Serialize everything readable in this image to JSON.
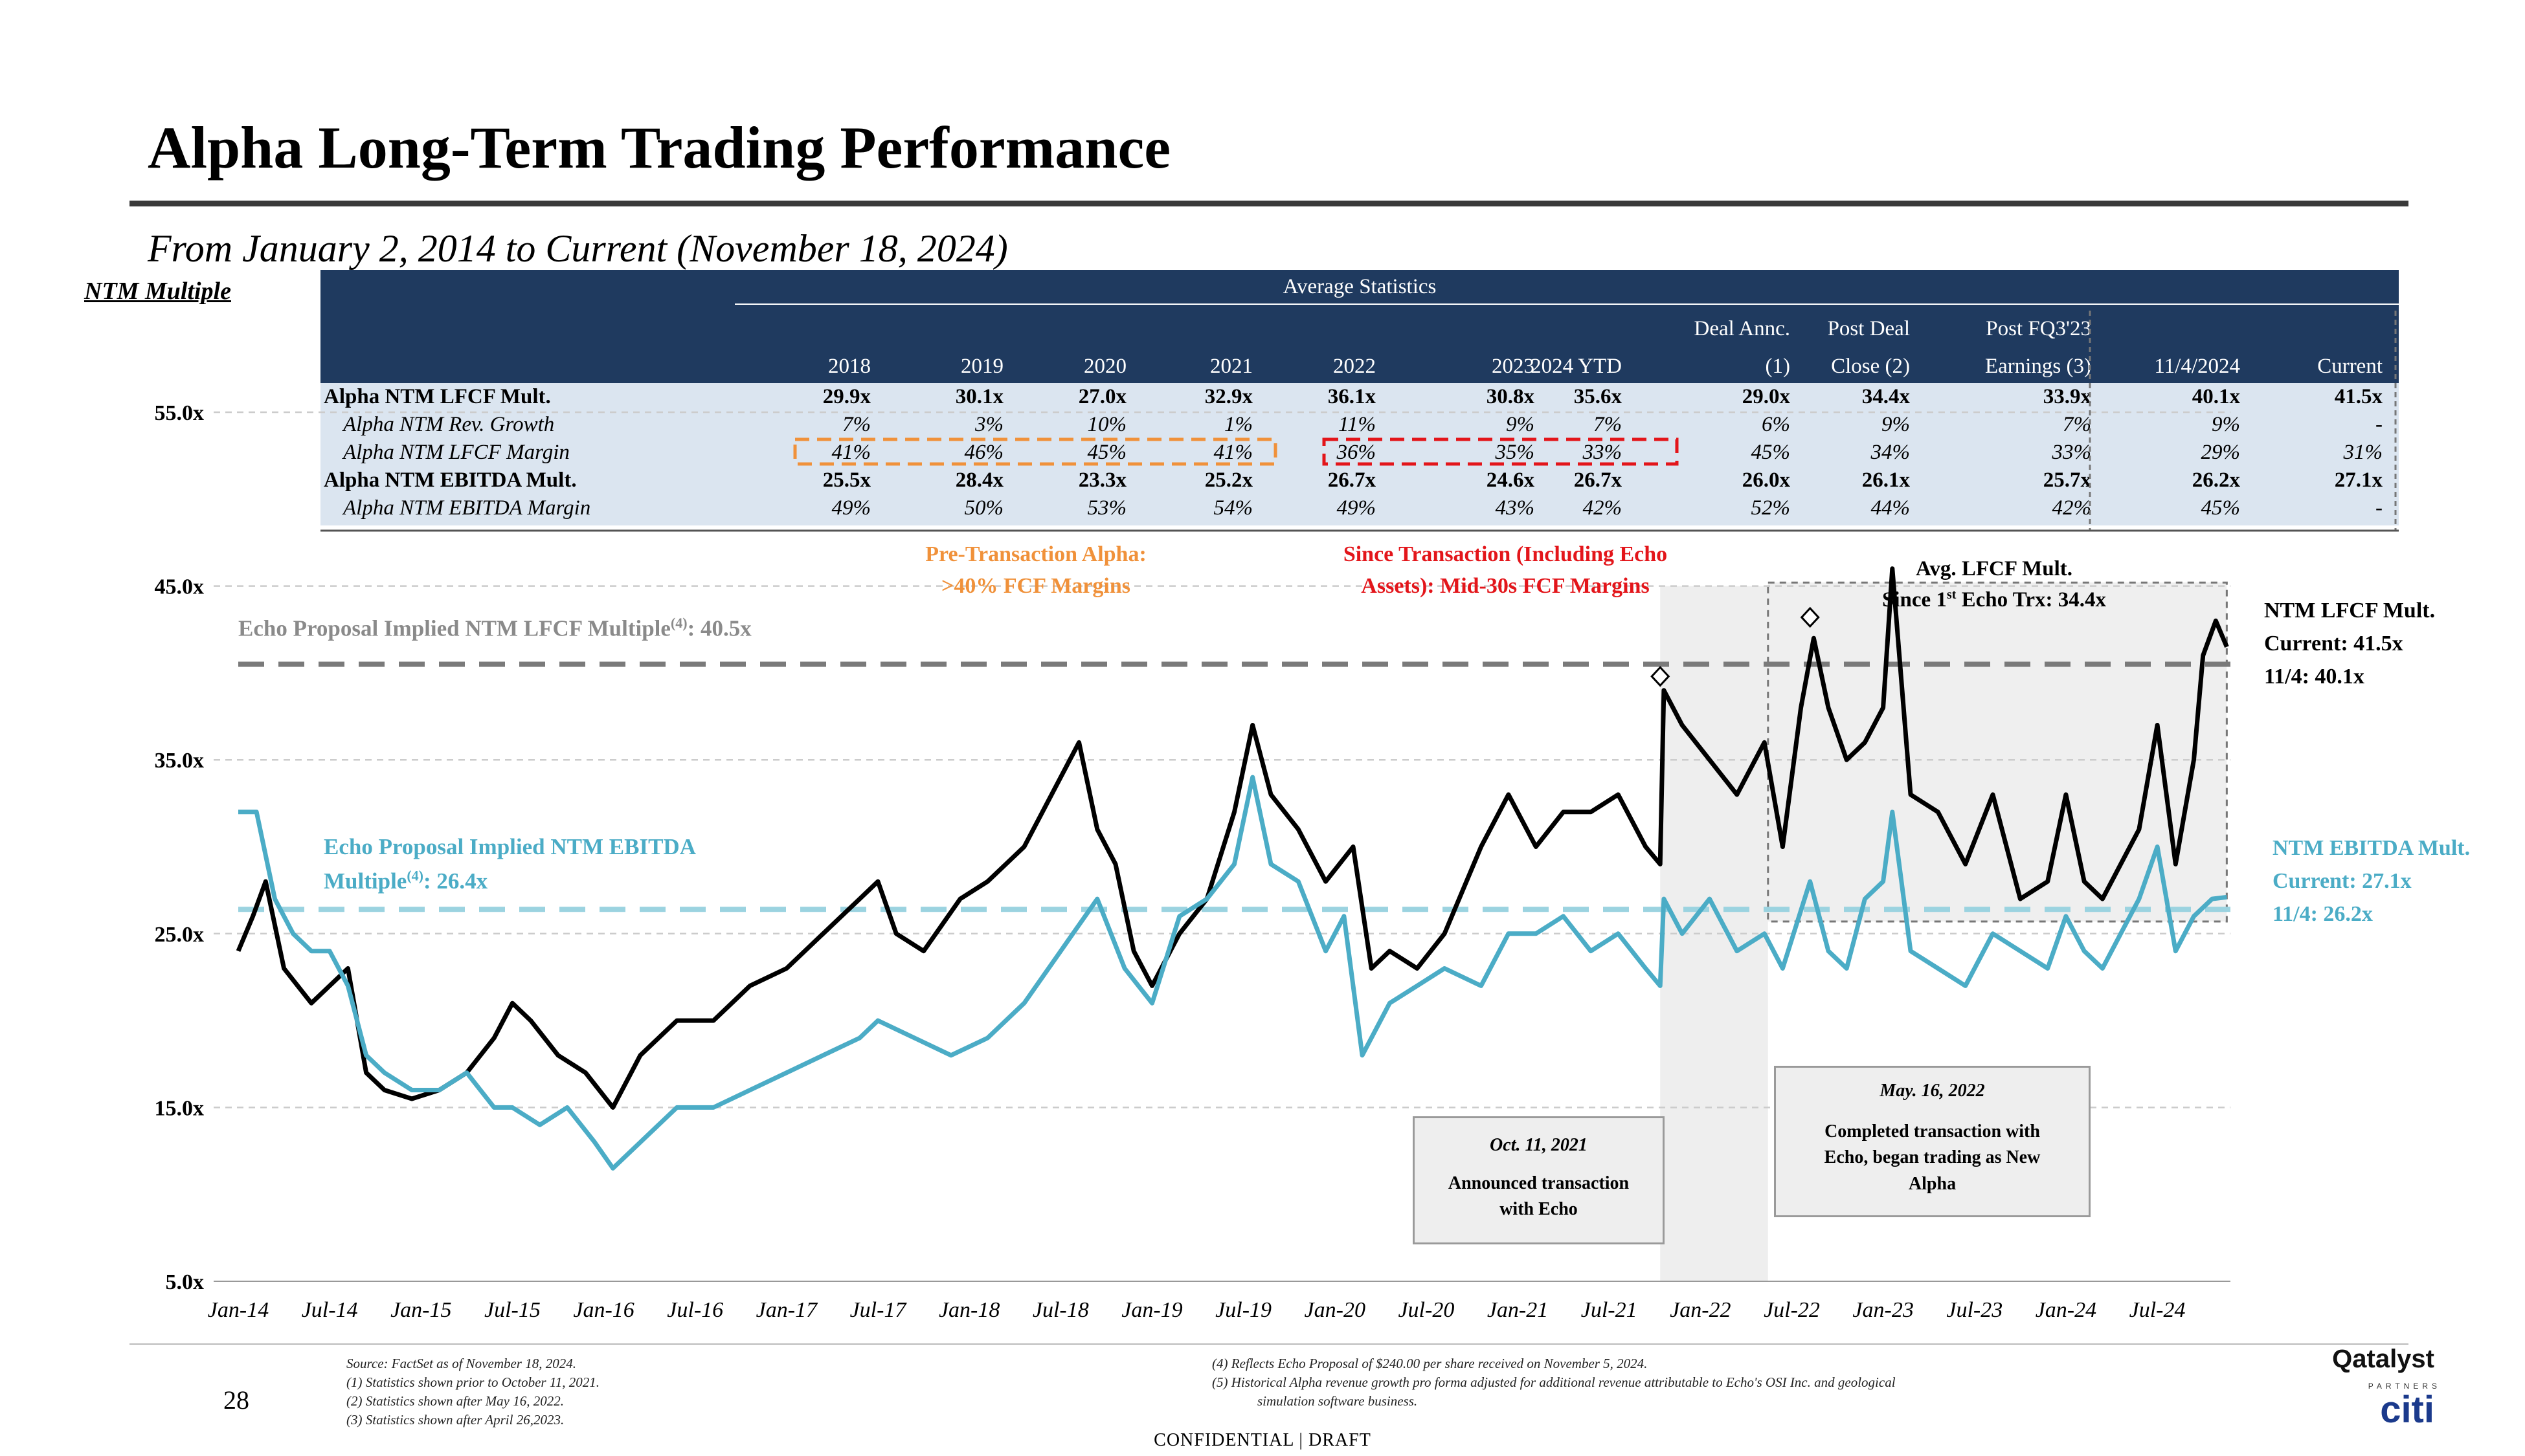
{
  "title": "Alpha Long-Term Trading Performance",
  "subtitle": "From January 2, 2014 to Current (November 18, 2024)",
  "y_axis_label": "NTM Multiple",
  "stats": {
    "banner": "Average Statistics",
    "columns": [
      {
        "top": "",
        "bottom": "2018"
      },
      {
        "top": "",
        "bottom": "2019"
      },
      {
        "top": "",
        "bottom": "2020"
      },
      {
        "top": "",
        "bottom": "2021"
      },
      {
        "top": "",
        "bottom": "2022"
      },
      {
        "top": "",
        "bottom": "2023"
      },
      {
        "top": "",
        "bottom": "2024 YTD"
      },
      {
        "top": "Deal Annc.",
        "bottom": "(1)"
      },
      {
        "top": "Post Deal",
        "bottom": "Close (2)"
      },
      {
        "top": "Post FQ3'23",
        "bottom": "Earnings (3)"
      },
      {
        "top": "",
        "bottom": "11/4/2024"
      },
      {
        "top": "",
        "bottom": "Current"
      }
    ],
    "rows": [
      {
        "label": "Alpha NTM LFCF Mult.",
        "bold": true,
        "values": [
          "29.9x",
          "30.1x",
          "27.0x",
          "32.9x",
          "36.1x",
          "30.8x",
          "35.6x",
          "29.0x",
          "34.4x",
          "33.9x",
          "40.1x",
          "41.5x"
        ]
      },
      {
        "label": "Alpha NTM Rev. Growth",
        "bold": false,
        "values": [
          "7%",
          "3%",
          "10%",
          "1%",
          "11%",
          "9%",
          "7%",
          "6%",
          "9%",
          "7%",
          "9%",
          "-"
        ]
      },
      {
        "label": "Alpha NTM LFCF Margin",
        "bold": false,
        "values": [
          "41%",
          "46%",
          "45%",
          "41%",
          "36%",
          "35%",
          "33%",
          "45%",
          "34%",
          "33%",
          "29%",
          "31%"
        ]
      },
      {
        "label": "Alpha NTM EBITDA Mult.",
        "bold": true,
        "values": [
          "25.5x",
          "28.4x",
          "23.3x",
          "25.2x",
          "26.7x",
          "24.6x",
          "26.7x",
          "26.0x",
          "26.1x",
          "25.7x",
          "26.2x",
          "27.1x"
        ]
      },
      {
        "label": "Alpha NTM EBITDA Margin",
        "bold": false,
        "values": [
          "49%",
          "50%",
          "53%",
          "54%",
          "49%",
          "43%",
          "42%",
          "52%",
          "44%",
          "42%",
          "45%",
          "-"
        ]
      }
    ]
  },
  "annotations": {
    "pre_tx": "Pre-Transaction Alpha:",
    "pre_tx_2": ">40% FCF Margins",
    "post_tx": "Since Transaction (Including Echo",
    "post_tx_2": "Assets): Mid-30s FCF Margins",
    "echo_lfcf": "Echo Proposal Implied NTM LFCF Multiple",
    "echo_lfcf_sup": "(4)",
    "echo_lfcf_val": ": 40.5x",
    "echo_ebitda_1": "Echo Proposal Implied NTM EBITDA",
    "echo_ebitda_2": "Multiple",
    "echo_ebitda_sup": "(4)",
    "echo_ebitda_val": ": 26.4x",
    "avg_lfcf_1": "Avg. LFCF Mult.",
    "avg_lfcf_2a": "Since 1",
    "avg_lfcf_sup": "st",
    "avg_lfcf_2b": " Echo Trx: 34.4x",
    "lfcf_right_1": "NTM LFCF Mult.",
    "lfcf_right_2": "Current: 41.5x",
    "lfcf_right_3": "11/4: 40.1x",
    "ebitda_right_1": "NTM EBITDA Mult.",
    "ebitda_right_2": "Current: 27.1x",
    "ebitda_right_3": "11/4: 26.2x",
    "box1_date": "Oct. 11, 2021",
    "box1_text_1": "Announced transaction",
    "box1_text_2": "with Echo",
    "box2_date": "May. 16, 2022",
    "box2_text_1": "Completed transaction with",
    "box2_text_2": "Echo, began trading as New",
    "box2_text_3": "Alpha"
  },
  "footnotes": {
    "source": "Source: FactSet as of November 18, 2024.",
    "n1": "(1)      Statistics shown prior to October 11, 2021.",
    "n2": "(2)      Statistics shown after May 16, 2022.",
    "n3": "(3)      Statistics shown after April 26,2023.",
    "n4": "(4)      Reflects Echo Proposal of $240.00 per share received on November 5, 2024.",
    "n5a": "(5)      Historical Alpha revenue growth pro forma adjusted for additional revenue attributable to Echo's OSI Inc. and geological",
    "n5b": "simulation software business."
  },
  "page_number": "28",
  "confidential": "CONFIDENTIAL | DRAFT",
  "logo_qatalyst": "Qatalyst",
  "logo_partners": "PARTNERS",
  "logo_citi": "citi",
  "colors": {
    "navy": "#1f3a5f",
    "lfcf": "#000000",
    "ebitda": "#4bacc6",
    "orange": "#f0913a",
    "red": "#e3151a",
    "grey": "#777777"
  },
  "chart_data": {
    "type": "line",
    "ylim": [
      5,
      55
    ],
    "yticks": [
      5,
      15,
      25,
      35,
      45,
      55
    ],
    "ytick_labels": [
      "5.0x",
      "15.0x",
      "25.0x",
      "35.0x",
      "45.0x",
      "55.0x"
    ],
    "xlim": [
      2014.0,
      2024.9
    ],
    "xtick_labels": [
      "Jan-14",
      "Jul-14",
      "Jan-15",
      "Jul-15",
      "Jan-16",
      "Jul-16",
      "Jan-17",
      "Jul-17",
      "Jan-18",
      "Jul-18",
      "Jan-19",
      "Jul-19",
      "Jan-20",
      "Jul-20",
      "Jan-21",
      "Jul-21",
      "Jan-22",
      "Jul-22",
      "Jan-23",
      "Jul-23",
      "Jan-24",
      "Jul-24"
    ],
    "xtick_values": [
      2014.0,
      2014.5,
      2015.0,
      2015.5,
      2016.0,
      2016.5,
      2017.0,
      2017.5,
      2018.0,
      2018.5,
      2019.0,
      2019.5,
      2020.0,
      2020.5,
      2021.0,
      2021.5,
      2022.0,
      2022.5,
      2023.0,
      2023.5,
      2024.0,
      2024.5
    ],
    "reference_lines": [
      {
        "name": "Echo Proposal Implied NTM LFCF Multiple",
        "value": 40.5
      },
      {
        "name": "Echo Proposal Implied NTM EBITDA Multiple",
        "value": 26.4
      }
    ],
    "series": [
      {
        "name": "NTM LFCF Mult.",
        "points": [
          [
            2014.0,
            24
          ],
          [
            2014.08,
            26
          ],
          [
            2014.15,
            28
          ],
          [
            2014.25,
            23
          ],
          [
            2014.4,
            21
          ],
          [
            2014.5,
            22
          ],
          [
            2014.6,
            23
          ],
          [
            2014.7,
            17
          ],
          [
            2014.8,
            16
          ],
          [
            2014.95,
            15.5
          ],
          [
            2015.1,
            16
          ],
          [
            2015.25,
            17
          ],
          [
            2015.4,
            19
          ],
          [
            2015.5,
            21
          ],
          [
            2015.6,
            20
          ],
          [
            2015.75,
            18
          ],
          [
            2015.9,
            17
          ],
          [
            2016.05,
            15
          ],
          [
            2016.2,
            18
          ],
          [
            2016.4,
            20
          ],
          [
            2016.6,
            20
          ],
          [
            2016.8,
            22
          ],
          [
            2017.0,
            23
          ],
          [
            2017.2,
            25
          ],
          [
            2017.4,
            27
          ],
          [
            2017.5,
            28
          ],
          [
            2017.6,
            25
          ],
          [
            2017.75,
            24
          ],
          [
            2017.95,
            27
          ],
          [
            2018.1,
            28
          ],
          [
            2018.3,
            30
          ],
          [
            2018.5,
            34
          ],
          [
            2018.6,
            36
          ],
          [
            2018.7,
            31
          ],
          [
            2018.8,
            29
          ],
          [
            2018.9,
            24
          ],
          [
            2019.0,
            22
          ],
          [
            2019.15,
            25
          ],
          [
            2019.3,
            27
          ],
          [
            2019.45,
            32
          ],
          [
            2019.55,
            37
          ],
          [
            2019.65,
            33
          ],
          [
            2019.8,
            31
          ],
          [
            2019.95,
            28
          ],
          [
            2020.1,
            30
          ],
          [
            2020.2,
            23
          ],
          [
            2020.3,
            24
          ],
          [
            2020.45,
            23
          ],
          [
            2020.6,
            25
          ],
          [
            2020.8,
            30
          ],
          [
            2020.95,
            33
          ],
          [
            2021.1,
            30
          ],
          [
            2021.25,
            32
          ],
          [
            2021.4,
            32
          ],
          [
            2021.55,
            33
          ],
          [
            2021.7,
            30
          ],
          [
            2021.78,
            29
          ],
          [
            2021.8,
            39
          ],
          [
            2021.9,
            37
          ],
          [
            2022.05,
            35
          ],
          [
            2022.2,
            33
          ],
          [
            2022.35,
            36
          ],
          [
            2022.45,
            30
          ],
          [
            2022.55,
            38
          ],
          [
            2022.62,
            42
          ],
          [
            2022.7,
            38
          ],
          [
            2022.8,
            35
          ],
          [
            2022.9,
            36
          ],
          [
            2023.0,
            38
          ],
          [
            2023.05,
            46
          ],
          [
            2023.15,
            33
          ],
          [
            2023.3,
            32
          ],
          [
            2023.45,
            29
          ],
          [
            2023.6,
            33
          ],
          [
            2023.75,
            27
          ],
          [
            2023.9,
            28
          ],
          [
            2024.0,
            33
          ],
          [
            2024.1,
            28
          ],
          [
            2024.2,
            27
          ],
          [
            2024.3,
            29
          ],
          [
            2024.4,
            31
          ],
          [
            2024.5,
            37
          ],
          [
            2024.6,
            29
          ],
          [
            2024.7,
            35
          ],
          [
            2024.75,
            41
          ],
          [
            2024.82,
            43
          ],
          [
            2024.88,
            41.5
          ]
        ]
      },
      {
        "name": "NTM EBITDA Mult.",
        "points": [
          [
            2014.0,
            32
          ],
          [
            2014.1,
            32
          ],
          [
            2014.2,
            27
          ],
          [
            2014.3,
            25
          ],
          [
            2014.4,
            24
          ],
          [
            2014.5,
            24
          ],
          [
            2014.6,
            22
          ],
          [
            2014.7,
            18
          ],
          [
            2014.8,
            17
          ],
          [
            2014.95,
            16
          ],
          [
            2015.1,
            16
          ],
          [
            2015.25,
            17
          ],
          [
            2015.4,
            15
          ],
          [
            2015.5,
            15
          ],
          [
            2015.65,
            14
          ],
          [
            2015.8,
            15
          ],
          [
            2015.95,
            13
          ],
          [
            2016.05,
            11.5
          ],
          [
            2016.2,
            13
          ],
          [
            2016.4,
            15
          ],
          [
            2016.6,
            15
          ],
          [
            2016.8,
            16
          ],
          [
            2017.0,
            17
          ],
          [
            2017.2,
            18
          ],
          [
            2017.4,
            19
          ],
          [
            2017.5,
            20
          ],
          [
            2017.7,
            19
          ],
          [
            2017.9,
            18
          ],
          [
            2018.1,
            19
          ],
          [
            2018.3,
            21
          ],
          [
            2018.5,
            24
          ],
          [
            2018.7,
            27
          ],
          [
            2018.85,
            23
          ],
          [
            2019.0,
            21
          ],
          [
            2019.15,
            26
          ],
          [
            2019.3,
            27
          ],
          [
            2019.45,
            29
          ],
          [
            2019.55,
            34
          ],
          [
            2019.65,
            29
          ],
          [
            2019.8,
            28
          ],
          [
            2019.95,
            24
          ],
          [
            2020.05,
            26
          ],
          [
            2020.15,
            18
          ],
          [
            2020.3,
            21
          ],
          [
            2020.45,
            22
          ],
          [
            2020.6,
            23
          ],
          [
            2020.8,
            22
          ],
          [
            2020.95,
            25
          ],
          [
            2021.1,
            25
          ],
          [
            2021.25,
            26
          ],
          [
            2021.4,
            24
          ],
          [
            2021.55,
            25
          ],
          [
            2021.7,
            23
          ],
          [
            2021.78,
            22
          ],
          [
            2021.8,
            27
          ],
          [
            2021.9,
            25
          ],
          [
            2022.05,
            27
          ],
          [
            2022.2,
            24
          ],
          [
            2022.35,
            25
          ],
          [
            2022.45,
            23
          ],
          [
            2022.6,
            28
          ],
          [
            2022.7,
            24
          ],
          [
            2022.8,
            23
          ],
          [
            2022.9,
            27
          ],
          [
            2023.0,
            28
          ],
          [
            2023.05,
            32
          ],
          [
            2023.15,
            24
          ],
          [
            2023.3,
            23
          ],
          [
            2023.45,
            22
          ],
          [
            2023.6,
            25
          ],
          [
            2023.75,
            24
          ],
          [
            2023.9,
            23
          ],
          [
            2024.0,
            26
          ],
          [
            2024.1,
            24
          ],
          [
            2024.2,
            23
          ],
          [
            2024.3,
            25
          ],
          [
            2024.4,
            27
          ],
          [
            2024.5,
            30
          ],
          [
            2024.6,
            24
          ],
          [
            2024.7,
            26
          ],
          [
            2024.8,
            27
          ],
          [
            2024.88,
            27.1
          ]
        ]
      }
    ]
  }
}
